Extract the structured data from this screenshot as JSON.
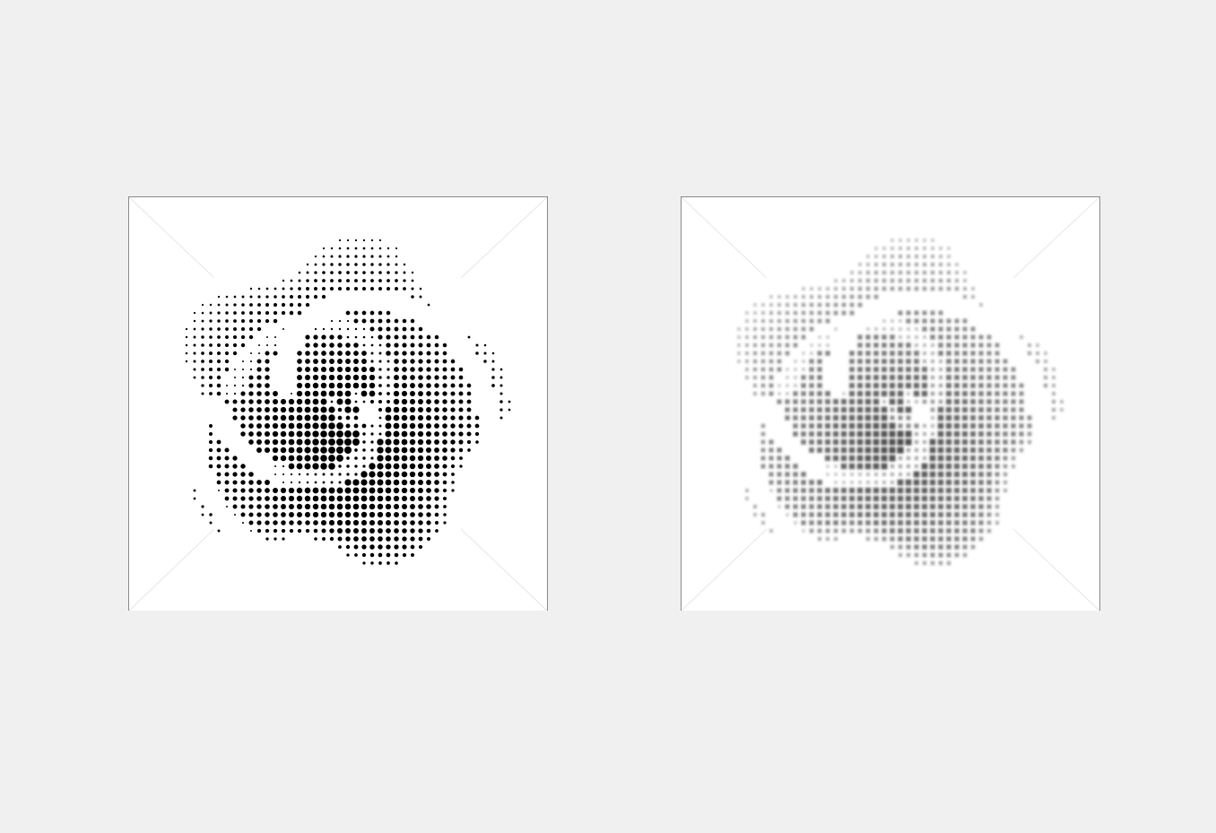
{
  "panels": [
    {
      "id": "halftone-dots",
      "style": "crisp-dots",
      "dot_color": "#000000"
    },
    {
      "id": "blurred-halftone",
      "style": "soft-squares",
      "dot_color": "#2a2a2a"
    }
  ],
  "colors": {
    "background": "#f0f0f0",
    "panel_background": "#ffffff",
    "panel_border": "#8a8a8a"
  }
}
